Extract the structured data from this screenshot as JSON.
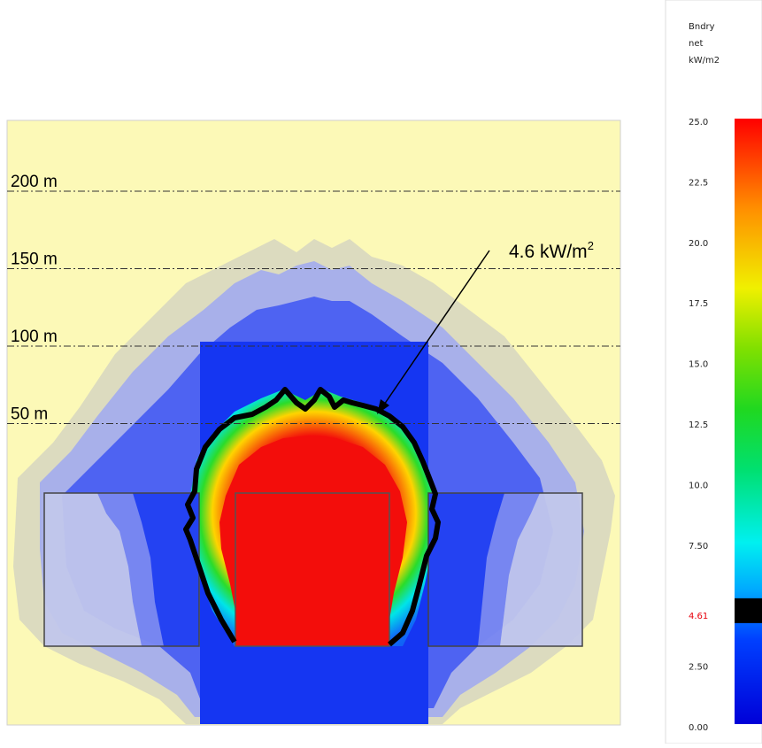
{
  "chart_data": {
    "type": "heatmap",
    "title": "",
    "distance_lines": [
      {
        "label": "200 m",
        "distance_m": 200
      },
      {
        "label": "150 m",
        "distance_m": 150
      },
      {
        "label": "100 m",
        "distance_m": 100
      },
      {
        "label": "50 m",
        "distance_m": 50
      }
    ],
    "annotation": {
      "text": "4.6 kW/m",
      "superscript": "2",
      "value": 4.6
    },
    "colorbar": {
      "title_lines": [
        "Bndry",
        "net",
        "kW/m2"
      ],
      "ticks": [
        "25.0",
        "22.5",
        "20.0",
        "17.5",
        "15.0",
        "12.5",
        "10.0",
        "7.50",
        "4.61",
        "2.50",
        "0.00"
      ],
      "tick_values": [
        25.0,
        22.5,
        20.0,
        17.5,
        15.0,
        12.5,
        10.0,
        7.5,
        4.61,
        2.5,
        0.0
      ],
      "highlight_tick": "4.61",
      "highlight_color": "#e8000b",
      "range": [
        0,
        25
      ],
      "threshold": 4.61
    },
    "colors": {
      "background": "#fcf9b7",
      "outer_halo": "#dcdbbf",
      "mid_halo": "#a8b0ea",
      "inner_halo": "#4e63f2",
      "blue": "#0f3cf4",
      "cyan": "#00e4e8",
      "green": "#1fdc2c",
      "yellow": "#f2f200",
      "red": "#f30d0b",
      "contour": "#000000"
    }
  }
}
